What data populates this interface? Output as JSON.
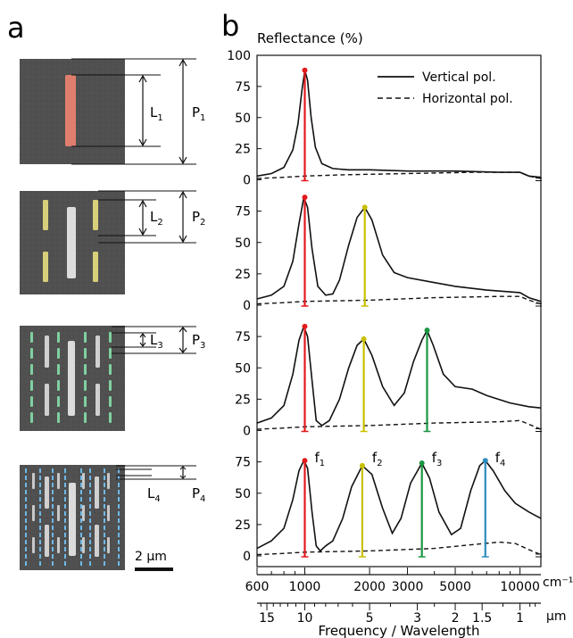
{
  "figure": {
    "panel_a_label": "a",
    "panel_b_label": "b",
    "scale_bar_label": "2 µm"
  },
  "micrographs": [
    {
      "L": "L",
      "L_sub": "1",
      "P": "P",
      "P_sub": "1",
      "colors": {
        "long": "#e07e6e"
      }
    },
    {
      "L": "L",
      "L_sub": "2",
      "P": "P",
      "P_sub": "2",
      "colors": {
        "long": "#dcdcdc",
        "mid": "#d8cf7a"
      }
    },
    {
      "L": "L",
      "L_sub": "3",
      "P": "P",
      "P_sub": "3",
      "colors": {
        "long": "#dcdcdc",
        "mid": "#d0d0d0",
        "short": "#7fd0a0"
      }
    },
    {
      "L": "L",
      "L_sub": "4",
      "P": "P",
      "P_sub": "4",
      "colors": {
        "long": "#dcdcdc",
        "mid": "#d0d0d0",
        "short": "#c8c8c8",
        "tiny": "#6fb8e8"
      }
    }
  ],
  "chart_data": {
    "type": "line",
    "ylabel": "Reflectance (%)",
    "xlabel": "Frequency / Wavelength",
    "x_scale": "log",
    "xlim": [
      600,
      12500
    ],
    "ylim": [
      0,
      100
    ],
    "y_ticks_top": [
      "100",
      "75",
      "50",
      "25",
      "0"
    ],
    "y_ticks": [
      "75",
      "50",
      "25",
      "0"
    ],
    "freq_ticks": [
      600,
      1000,
      2000,
      3000,
      5000,
      10000
    ],
    "freq_tick_labels": [
      "600",
      "1000",
      "2000",
      "3000",
      "5000",
      "10000"
    ],
    "freq_unit": "cm⁻¹",
    "wavelength_ticks": [
      15,
      10,
      5,
      3,
      2,
      1.5,
      1
    ],
    "wavelength_tick_labels": [
      "15",
      "10",
      "5",
      "3",
      "2",
      "1.5",
      "1"
    ],
    "wavelength_unit": "µm",
    "legend": {
      "placement": "top-right",
      "entries": [
        "Vertical pol.",
        "Horizontal pol."
      ]
    },
    "mode_labels": [
      {
        "letter": "f",
        "sub": "1"
      },
      {
        "letter": "f",
        "sub": "2"
      },
      {
        "letter": "f",
        "sub": "3"
      },
      {
        "letter": "f",
        "sub": "4"
      }
    ],
    "panels": [
      {
        "peaks": [
          {
            "x": 1000,
            "y": 88,
            "color": "#e31a1c"
          }
        ],
        "vertical": [
          [
            600,
            3
          ],
          [
            700,
            5
          ],
          [
            800,
            10
          ],
          [
            880,
            24
          ],
          [
            930,
            45
          ],
          [
            970,
            72
          ],
          [
            1000,
            88
          ],
          [
            1030,
            80
          ],
          [
            1070,
            50
          ],
          [
            1120,
            26
          ],
          [
            1200,
            13
          ],
          [
            1350,
            9
          ],
          [
            1600,
            8
          ],
          [
            2000,
            8
          ],
          [
            3000,
            7
          ],
          [
            5000,
            7
          ],
          [
            8000,
            6
          ],
          [
            10000,
            6
          ],
          [
            11000,
            3
          ],
          [
            12500,
            2
          ]
        ],
        "horizontal": [
          [
            600,
            1
          ],
          [
            800,
            2
          ],
          [
            1000,
            3
          ],
          [
            1500,
            4
          ],
          [
            3000,
            5
          ],
          [
            6000,
            6
          ],
          [
            10000,
            6
          ],
          [
            11000,
            3
          ],
          [
            12500,
            1
          ]
        ]
      },
      {
        "peaks": [
          {
            "x": 1000,
            "y": 86,
            "color": "#e31a1c"
          },
          {
            "x": 1900,
            "y": 78,
            "color": "#c9c000"
          }
        ],
        "vertical": [
          [
            600,
            5
          ],
          [
            700,
            8
          ],
          [
            800,
            15
          ],
          [
            880,
            35
          ],
          [
            940,
            65
          ],
          [
            990,
            86
          ],
          [
            1030,
            78
          ],
          [
            1080,
            45
          ],
          [
            1150,
            15
          ],
          [
            1250,
            8
          ],
          [
            1350,
            9
          ],
          [
            1450,
            20
          ],
          [
            1600,
            48
          ],
          [
            1750,
            70
          ],
          [
            1900,
            78
          ],
          [
            2050,
            68
          ],
          [
            2300,
            40
          ],
          [
            2600,
            26
          ],
          [
            3000,
            22
          ],
          [
            4000,
            18
          ],
          [
            5000,
            15
          ],
          [
            7000,
            12
          ],
          [
            10000,
            10
          ],
          [
            11000,
            6
          ],
          [
            12500,
            3
          ]
        ],
        "horizontal": [
          [
            600,
            1
          ],
          [
            800,
            2
          ],
          [
            1000,
            3
          ],
          [
            2000,
            4
          ],
          [
            4000,
            6
          ],
          [
            8000,
            7
          ],
          [
            10000,
            7
          ],
          [
            11000,
            4
          ],
          [
            12500,
            1
          ]
        ]
      },
      {
        "peaks": [
          {
            "x": 1000,
            "y": 83,
            "color": "#e31a1c"
          },
          {
            "x": 1880,
            "y": 73,
            "color": "#c9c000"
          },
          {
            "x": 3700,
            "y": 80,
            "color": "#1a9641"
          }
        ],
        "vertical": [
          [
            600,
            6
          ],
          [
            700,
            10
          ],
          [
            800,
            20
          ],
          [
            880,
            45
          ],
          [
            940,
            72
          ],
          [
            990,
            83
          ],
          [
            1030,
            75
          ],
          [
            1080,
            40
          ],
          [
            1130,
            8
          ],
          [
            1200,
            4
          ],
          [
            1300,
            8
          ],
          [
            1450,
            25
          ],
          [
            1600,
            50
          ],
          [
            1750,
            68
          ],
          [
            1880,
            73
          ],
          [
            2050,
            60
          ],
          [
            2300,
            35
          ],
          [
            2600,
            20
          ],
          [
            2900,
            30
          ],
          [
            3200,
            55
          ],
          [
            3500,
            72
          ],
          [
            3700,
            80
          ],
          [
            3950,
            68
          ],
          [
            4400,
            45
          ],
          [
            5000,
            35
          ],
          [
            6000,
            33
          ],
          [
            7000,
            28
          ],
          [
            9000,
            22
          ],
          [
            11000,
            19
          ],
          [
            12500,
            18
          ]
        ],
        "horizontal": [
          [
            600,
            1
          ],
          [
            800,
            2
          ],
          [
            1000,
            3
          ],
          [
            2000,
            4
          ],
          [
            4000,
            6
          ],
          [
            8000,
            7
          ],
          [
            10000,
            8
          ],
          [
            11000,
            5
          ],
          [
            12500,
            1
          ]
        ]
      },
      {
        "peaks": [
          {
            "x": 1000,
            "y": 76,
            "color": "#e31a1c"
          },
          {
            "x": 1850,
            "y": 72,
            "color": "#c9c000"
          },
          {
            "x": 3500,
            "y": 74,
            "color": "#1a9641"
          },
          {
            "x": 6900,
            "y": 76,
            "color": "#2b8cbe"
          }
        ],
        "vertical": [
          [
            600,
            6
          ],
          [
            700,
            12
          ],
          [
            800,
            22
          ],
          [
            880,
            45
          ],
          [
            940,
            68
          ],
          [
            990,
            76
          ],
          [
            1030,
            70
          ],
          [
            1080,
            35
          ],
          [
            1130,
            8
          ],
          [
            1180,
            4
          ],
          [
            1250,
            8
          ],
          [
            1350,
            12
          ],
          [
            1500,
            30
          ],
          [
            1650,
            55
          ],
          [
            1850,
            72
          ],
          [
            2050,
            65
          ],
          [
            2300,
            38
          ],
          [
            2550,
            18
          ],
          [
            2800,
            30
          ],
          [
            3100,
            58
          ],
          [
            3500,
            74
          ],
          [
            3800,
            62
          ],
          [
            4200,
            35
          ],
          [
            4800,
            17
          ],
          [
            5300,
            22
          ],
          [
            5900,
            52
          ],
          [
            6500,
            72
          ],
          [
            6900,
            76
          ],
          [
            7500,
            68
          ],
          [
            8500,
            52
          ],
          [
            9500,
            42
          ],
          [
            11000,
            35
          ],
          [
            12500,
            30
          ]
        ],
        "horizontal": [
          [
            600,
            1
          ],
          [
            800,
            2
          ],
          [
            1000,
            3
          ],
          [
            2000,
            4
          ],
          [
            4000,
            6
          ],
          [
            6000,
            9
          ],
          [
            8000,
            11
          ],
          [
            9500,
            10
          ],
          [
            11000,
            5
          ],
          [
            12500,
            1
          ]
        ]
      }
    ]
  }
}
